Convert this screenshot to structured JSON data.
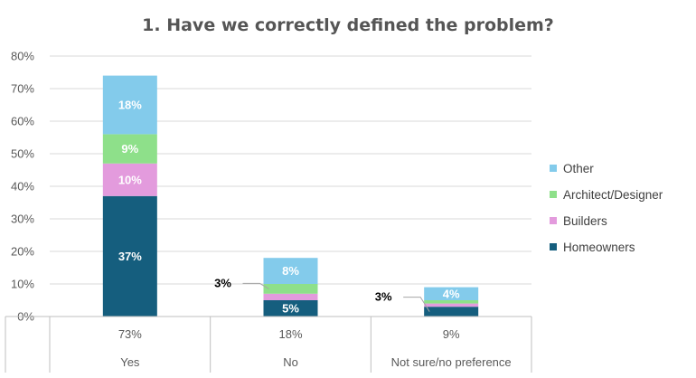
{
  "chart_data": {
    "type": "bar",
    "stacked": true,
    "title": "1. Have we correctly defined the problem?",
    "categories": [
      "Yes",
      "No",
      "Not sure/no preference"
    ],
    "totals": [
      "73%",
      "18%",
      "9%"
    ],
    "ylim": [
      0,
      80
    ],
    "yticks": [
      "0%",
      "10%",
      "20%",
      "30%",
      "40%",
      "50%",
      "60%",
      "70%",
      "80%"
    ],
    "grid": true,
    "legend_position": "right",
    "series": [
      {
        "name": "Homeowners",
        "color": "#155E7E",
        "values": [
          37,
          5,
          3
        ],
        "labels": [
          "37%",
          "5%",
          "3%"
        ]
      },
      {
        "name": "Builders",
        "color": "#E39BDD",
        "values": [
          10,
          2,
          1
        ],
        "labels": [
          "10%",
          "",
          ""
        ]
      },
      {
        "name": "Architect/Designer",
        "color": "#8EE08A",
        "values": [
          9,
          3,
          1
        ],
        "labels": [
          "9%",
          "3%",
          ""
        ]
      },
      {
        "name": "Other",
        "color": "#83CBEB",
        "values": [
          18,
          8,
          4
        ],
        "labels": [
          "18%",
          "8%",
          "4%"
        ]
      }
    ]
  }
}
